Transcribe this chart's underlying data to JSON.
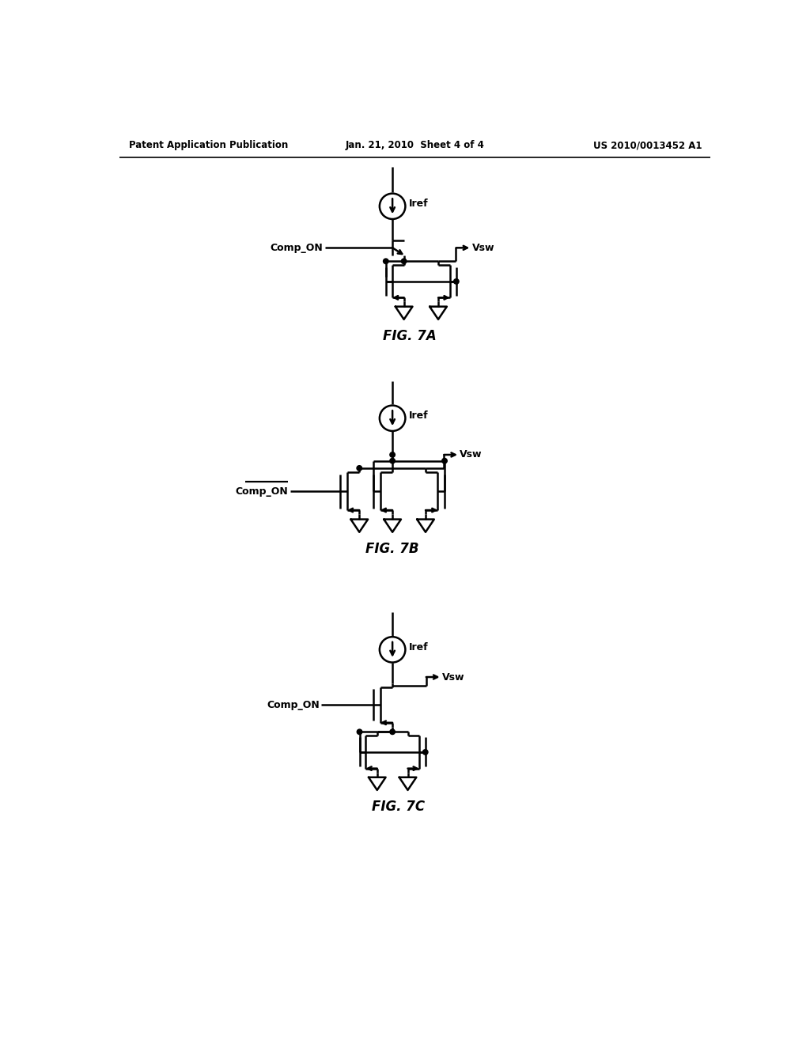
{
  "background_color": "#ffffff",
  "line_color": "#000000",
  "lw": 1.8,
  "header_left": "Patent Application Publication",
  "header_center": "Jan. 21, 2010  Sheet 4 of 4",
  "header_right": "US 2010/0013452 A1",
  "fig7a_label": "FIG. 7A",
  "fig7b_label": "FIG. 7B",
  "fig7c_label": "FIG. 7C",
  "label_iref": "Iref",
  "label_vsw": "Vsw",
  "label_comp_on": "Comp_ON",
  "label_comp_on_bar": "Comp_ON"
}
